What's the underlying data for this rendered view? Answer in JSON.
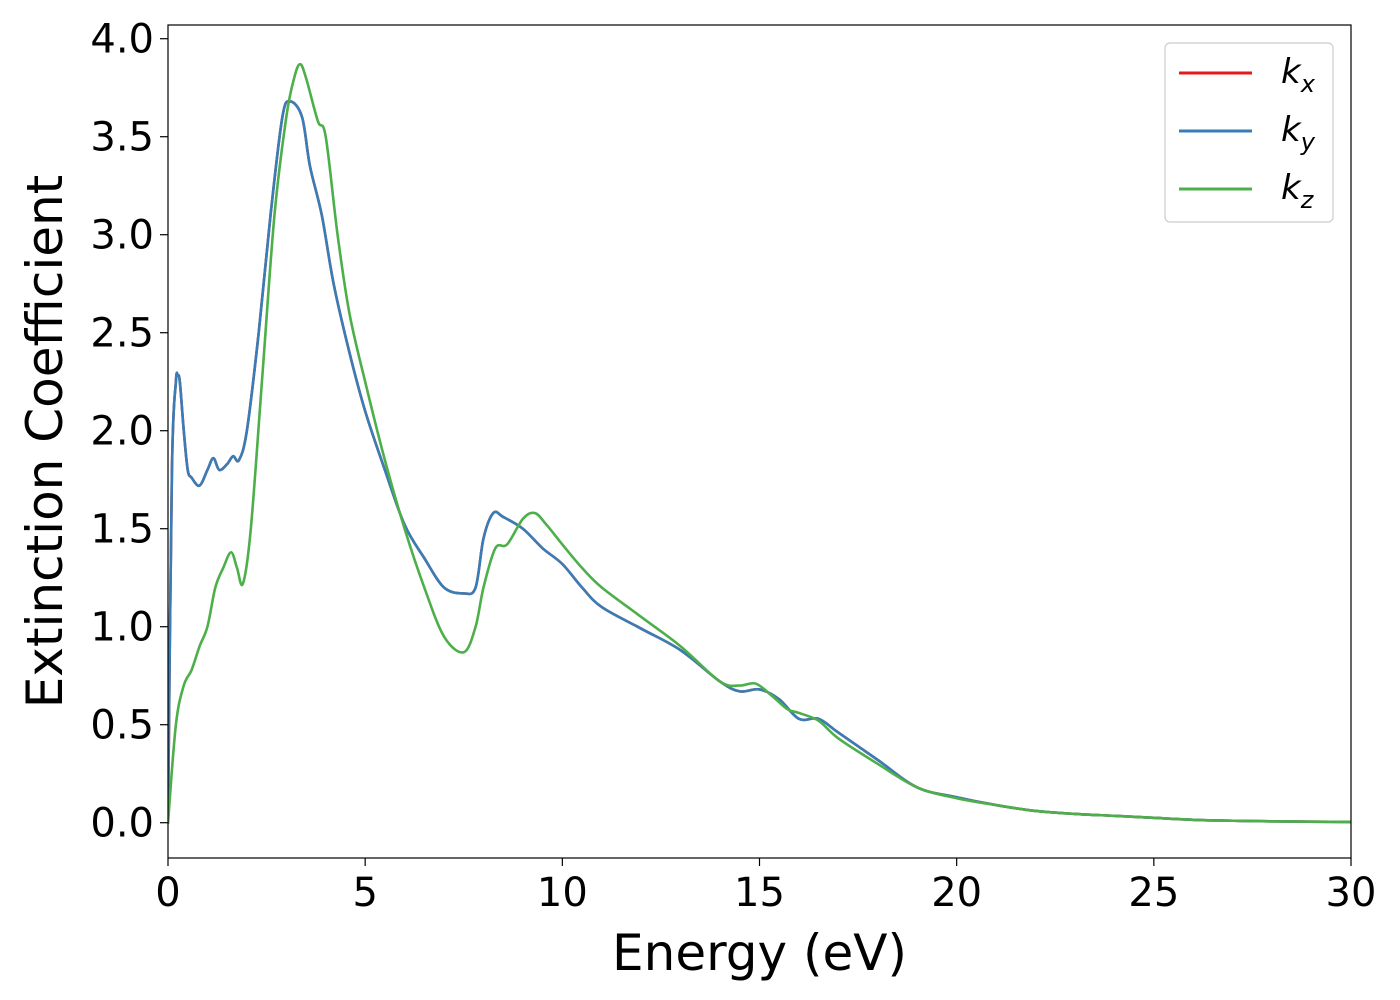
{
  "chart_data": {
    "type": "line",
    "title": "",
    "xlabel": "Energy (eV)",
    "ylabel": "Extinction Coefficient",
    "xlim": [
      0,
      30
    ],
    "ylim": [
      -0.18,
      4.07
    ],
    "xticks": [
      0,
      5,
      10,
      15,
      20,
      25,
      30
    ],
    "xtick_labels": [
      "0",
      "5",
      "10",
      "15",
      "20",
      "25",
      "30"
    ],
    "yticks": [
      0.0,
      0.5,
      1.0,
      1.5,
      2.0,
      2.5,
      3.0,
      3.5,
      4.0
    ],
    "ytick_labels": [
      "0.0",
      "0.5",
      "1.0",
      "1.5",
      "2.0",
      "2.5",
      "3.0",
      "3.5",
      "4.0"
    ],
    "grid": false,
    "legend_position": "top-right",
    "series": [
      {
        "name": "k",
        "subscript": "x",
        "color": "#e41a1c",
        "x": [
          0,
          0.1,
          0.2,
          0.25,
          0.3,
          0.4,
          0.5,
          0.6,
          0.8,
          1.0,
          1.15,
          1.3,
          1.5,
          1.65,
          1.8,
          2.0,
          2.3,
          2.6,
          2.9,
          3.1,
          3.4,
          3.6,
          3.9,
          4.2,
          4.6,
          5.0,
          5.5,
          6.0,
          6.5,
          7.0,
          7.5,
          7.8,
          8.0,
          8.25,
          8.5,
          9.0,
          9.5,
          10.0,
          10.5,
          11.0,
          12.0,
          13.0,
          14.0,
          14.5,
          15.0,
          15.5,
          16.0,
          16.5,
          17.0,
          18.0,
          19.0,
          20.0,
          21.0,
          22.0,
          23.0,
          24.0,
          25.0,
          26.0,
          27.0,
          28.0,
          30.0
        ],
        "values": [
          0.0,
          1.8,
          2.25,
          2.28,
          2.25,
          2.0,
          1.8,
          1.76,
          1.72,
          1.8,
          1.86,
          1.8,
          1.83,
          1.87,
          1.85,
          2.0,
          2.5,
          3.1,
          3.6,
          3.68,
          3.6,
          3.35,
          3.1,
          2.75,
          2.4,
          2.1,
          1.8,
          1.52,
          1.35,
          1.2,
          1.17,
          1.2,
          1.45,
          1.58,
          1.56,
          1.5,
          1.4,
          1.32,
          1.2,
          1.1,
          0.99,
          0.88,
          0.72,
          0.67,
          0.68,
          0.63,
          0.53,
          0.53,
          0.46,
          0.32,
          0.18,
          0.13,
          0.09,
          0.06,
          0.045,
          0.035,
          0.025,
          0.015,
          0.01,
          0.007,
          0.004
        ]
      },
      {
        "name": "k",
        "subscript": "y",
        "color": "#377eb8",
        "x": [
          0,
          0.1,
          0.2,
          0.25,
          0.3,
          0.4,
          0.5,
          0.6,
          0.8,
          1.0,
          1.15,
          1.3,
          1.5,
          1.65,
          1.8,
          2.0,
          2.3,
          2.6,
          2.9,
          3.1,
          3.4,
          3.6,
          3.9,
          4.2,
          4.6,
          5.0,
          5.5,
          6.0,
          6.5,
          7.0,
          7.5,
          7.8,
          8.0,
          8.25,
          8.5,
          9.0,
          9.5,
          10.0,
          10.5,
          11.0,
          12.0,
          13.0,
          14.0,
          14.5,
          15.0,
          15.5,
          16.0,
          16.5,
          17.0,
          18.0,
          19.0,
          20.0,
          21.0,
          22.0,
          23.0,
          24.0,
          25.0,
          26.0,
          27.0,
          28.0,
          30.0
        ],
        "values": [
          0.0,
          1.8,
          2.25,
          2.28,
          2.25,
          2.0,
          1.8,
          1.76,
          1.72,
          1.8,
          1.86,
          1.8,
          1.83,
          1.87,
          1.85,
          2.0,
          2.5,
          3.1,
          3.6,
          3.68,
          3.6,
          3.35,
          3.1,
          2.75,
          2.4,
          2.1,
          1.8,
          1.52,
          1.35,
          1.2,
          1.17,
          1.2,
          1.45,
          1.58,
          1.56,
          1.5,
          1.4,
          1.32,
          1.2,
          1.1,
          0.99,
          0.88,
          0.72,
          0.67,
          0.68,
          0.63,
          0.53,
          0.53,
          0.46,
          0.32,
          0.18,
          0.13,
          0.09,
          0.06,
          0.045,
          0.035,
          0.025,
          0.015,
          0.01,
          0.007,
          0.004
        ]
      },
      {
        "name": "k",
        "subscript": "z",
        "color": "#4daf4a",
        "x": [
          0,
          0.2,
          0.4,
          0.6,
          0.8,
          1.0,
          1.2,
          1.4,
          1.6,
          1.75,
          1.9,
          2.1,
          2.4,
          2.7,
          3.0,
          3.2,
          3.35,
          3.5,
          3.8,
          4.0,
          4.3,
          4.6,
          5.0,
          5.5,
          6.0,
          6.5,
          7.0,
          7.5,
          7.8,
          8.0,
          8.3,
          8.6,
          9.0,
          9.3,
          9.6,
          10.0,
          10.5,
          11.0,
          12.0,
          13.0,
          14.0,
          14.5,
          14.9,
          15.3,
          15.7,
          16.0,
          16.5,
          17.0,
          18.0,
          19.0,
          20.0,
          21.0,
          22.0,
          23.0,
          24.0,
          25.0,
          26.0,
          27.0,
          28.0,
          30.0
        ],
        "values": [
          0.0,
          0.5,
          0.7,
          0.78,
          0.9,
          1.0,
          1.2,
          1.3,
          1.38,
          1.3,
          1.22,
          1.5,
          2.3,
          3.1,
          3.6,
          3.8,
          3.87,
          3.8,
          3.58,
          3.5,
          3.0,
          2.6,
          2.25,
          1.85,
          1.5,
          1.2,
          0.95,
          0.87,
          1.0,
          1.2,
          1.4,
          1.42,
          1.55,
          1.58,
          1.52,
          1.42,
          1.3,
          1.2,
          1.05,
          0.9,
          0.72,
          0.7,
          0.71,
          0.65,
          0.58,
          0.56,
          0.52,
          0.43,
          0.3,
          0.18,
          0.125,
          0.09,
          0.06,
          0.045,
          0.035,
          0.025,
          0.015,
          0.01,
          0.007,
          0.004
        ]
      }
    ]
  }
}
